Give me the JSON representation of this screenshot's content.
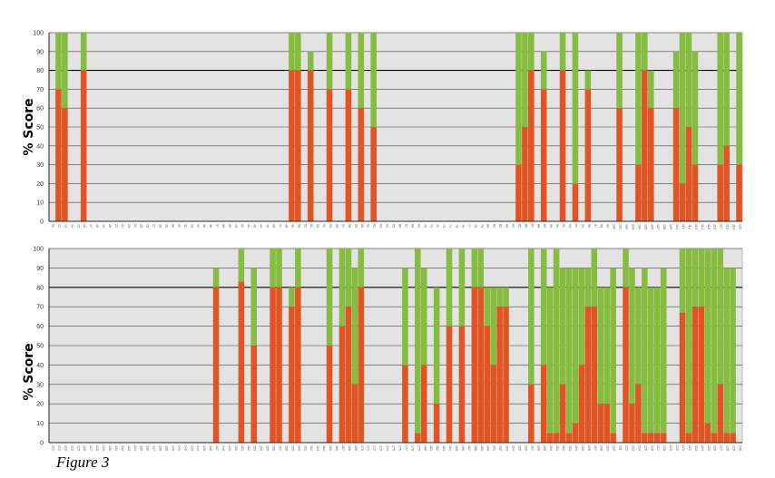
{
  "caption": "Figure 3",
  "colors": {
    "score": "#e05523",
    "remainder": "#86bc3f",
    "plot_bg": "#e3e3e3"
  },
  "chart_data": [
    {
      "type": "bar",
      "stacked": true,
      "ylabel": "% Score",
      "ylim": [
        0,
        100
      ],
      "yticks": [
        0,
        10,
        20,
        30,
        40,
        50,
        60,
        70,
        80,
        90,
        100
      ],
      "bold_gridline": 80,
      "grid": true,
      "categories": [
        "11",
        "12",
        "13",
        "14",
        "15",
        "16",
        "17",
        "18",
        "19",
        "20",
        "21",
        "22",
        "23",
        "24",
        "25",
        "26",
        "27",
        "28",
        "29",
        "30",
        "31",
        "32",
        "33",
        "34",
        "35",
        "36",
        "37",
        "38",
        "39",
        "40",
        "41",
        "42",
        "43",
        "44",
        "45",
        "46",
        "47",
        "48",
        "49",
        "50",
        "51",
        "52",
        "53",
        "54",
        "55",
        "56",
        "57",
        "58",
        "59",
        "60",
        "61",
        "62",
        "63",
        "64",
        "65",
        "66",
        "67",
        "68",
        "69",
        "70",
        "71",
        "72",
        "73",
        "74",
        "75",
        "76",
        "77",
        "78",
        "79",
        "80",
        "81",
        "82",
        "83",
        "84",
        "85",
        "86",
        "87",
        "88",
        "89",
        "90",
        "91",
        "92",
        "93",
        "94",
        "95",
        "96",
        "97",
        "98",
        "99",
        "100",
        "101",
        "102",
        "103",
        "104",
        "105",
        "106",
        "107",
        "108",
        "109",
        "110",
        "111",
        "112",
        "113",
        "114",
        "115",
        "116",
        "117",
        "118",
        "119",
        "120"
      ],
      "series": [
        {
          "values": [
            0,
            70,
            60,
            0,
            0,
            80,
            0,
            0,
            0,
            0,
            0,
            0,
            0,
            0,
            0,
            0,
            0,
            0,
            0,
            0,
            0,
            0,
            0,
            0,
            0,
            0,
            0,
            0,
            0,
            0,
            0,
            0,
            0,
            0,
            0,
            0,
            0,
            0,
            80,
            80,
            0,
            80,
            0,
            0,
            70,
            0,
            0,
            70,
            0,
            60,
            0,
            50,
            0,
            0,
            0,
            0,
            0,
            0,
            0,
            0,
            0,
            0,
            0,
            0,
            0,
            0,
            0,
            0,
            0,
            0,
            0,
            0,
            0,
            0,
            30,
            50,
            80,
            0,
            70,
            0,
            0,
            80,
            0,
            20,
            0,
            70,
            0,
            0,
            0,
            0,
            60,
            0,
            0,
            30,
            80,
            60,
            0,
            0,
            0,
            60,
            20,
            50,
            30,
            0,
            0,
            0,
            30,
            40,
            0,
            30
          ]
        },
        {
          "values": [
            0,
            30,
            40,
            0,
            0,
            20,
            0,
            0,
            0,
            0,
            0,
            0,
            0,
            0,
            0,
            0,
            0,
            0,
            0,
            0,
            0,
            0,
            0,
            0,
            0,
            0,
            0,
            0,
            0,
            0,
            0,
            0,
            0,
            0,
            0,
            0,
            0,
            0,
            20,
            20,
            0,
            10,
            0,
            0,
            30,
            0,
            0,
            30,
            0,
            40,
            0,
            50,
            0,
            0,
            0,
            0,
            0,
            0,
            0,
            0,
            0,
            0,
            0,
            0,
            0,
            0,
            0,
            0,
            0,
            0,
            0,
            0,
            0,
            0,
            70,
            50,
            20,
            0,
            20,
            0,
            0,
            20,
            0,
            80,
            0,
            10,
            0,
            0,
            0,
            0,
            40,
            0,
            0,
            70,
            20,
            20,
            0,
            0,
            0,
            30,
            80,
            50,
            60,
            0,
            0,
            0,
            70,
            60,
            0,
            70
          ]
        }
      ]
    },
    {
      "type": "bar",
      "stacked": true,
      "ylabel": "% Score",
      "ylim": [
        0,
        100
      ],
      "yticks": [
        0,
        10,
        20,
        30,
        40,
        50,
        60,
        70,
        80,
        90,
        100
      ],
      "bold_gridline": 80,
      "grid": true,
      "categories": [
        "121",
        "122",
        "123",
        "124",
        "125",
        "126",
        "127",
        "128",
        "129",
        "130",
        "131",
        "132",
        "133",
        "134",
        "135",
        "136",
        "137",
        "138",
        "139",
        "140",
        "141",
        "142",
        "143",
        "144",
        "145",
        "146",
        "147",
        "148",
        "149",
        "150",
        "151",
        "152",
        "153",
        "154",
        "155",
        "156",
        "157",
        "158",
        "159",
        "160",
        "161",
        "162",
        "163",
        "164",
        "165",
        "166",
        "167",
        "168",
        "169",
        "170",
        "171",
        "172",
        "173",
        "174",
        "175",
        "176",
        "177",
        "178",
        "179",
        "180",
        "181",
        "182",
        "183",
        "184",
        "185",
        "186",
        "187",
        "188",
        "189",
        "190",
        "191",
        "192",
        "193",
        "194",
        "195",
        "196",
        "197",
        "198",
        "199",
        "200",
        "201",
        "202",
        "203",
        "204",
        "205",
        "206",
        "207",
        "208",
        "209",
        "210",
        "211",
        "212",
        "213",
        "214",
        "215",
        "216",
        "217",
        "218",
        "219",
        "220",
        "221",
        "222",
        "223",
        "224",
        "225",
        "226",
        "227",
        "228",
        "229",
        "230"
      ],
      "series": [
        {
          "values": [
            0,
            0,
            0,
            0,
            0,
            0,
            0,
            0,
            0,
            0,
            0,
            0,
            0,
            0,
            0,
            0,
            0,
            0,
            0,
            0,
            0,
            0,
            0,
            0,
            0,
            0,
            80,
            0,
            0,
            0,
            83,
            0,
            50,
            0,
            0,
            80,
            80,
            0,
            70,
            80,
            0,
            0,
            0,
            0,
            50,
            0,
            60,
            70,
            30,
            80,
            0,
            0,
            0,
            0,
            0,
            0,
            40,
            0,
            5,
            40,
            0,
            20,
            0,
            60,
            0,
            60,
            0,
            80,
            80,
            60,
            40,
            70,
            70,
            0,
            0,
            0,
            30,
            0,
            40,
            5,
            5,
            30,
            5,
            10,
            40,
            70,
            70,
            20,
            20,
            5,
            0,
            80,
            20,
            30,
            5,
            5,
            5,
            5,
            0,
            0,
            67,
            5,
            70,
            70,
            10,
            5,
            30,
            5,
            5,
            0
          ]
        },
        {
          "values": [
            0,
            0,
            0,
            0,
            0,
            0,
            0,
            0,
            0,
            0,
            0,
            0,
            0,
            0,
            0,
            0,
            0,
            0,
            0,
            0,
            0,
            0,
            0,
            0,
            0,
            0,
            10,
            0,
            0,
            0,
            17,
            0,
            40,
            0,
            0,
            20,
            20,
            0,
            10,
            20,
            0,
            0,
            0,
            0,
            50,
            0,
            40,
            30,
            60,
            20,
            0,
            0,
            0,
            0,
            0,
            0,
            50,
            0,
            95,
            50,
            0,
            60,
            0,
            40,
            0,
            40,
            0,
            20,
            20,
            20,
            40,
            10,
            10,
            0,
            0,
            0,
            70,
            0,
            60,
            75,
            95,
            60,
            85,
            80,
            50,
            20,
            30,
            60,
            60,
            85,
            0,
            20,
            70,
            50,
            85,
            75,
            75,
            85,
            0,
            0,
            33,
            95,
            30,
            30,
            90,
            95,
            70,
            85,
            85,
            0
          ]
        }
      ]
    }
  ]
}
